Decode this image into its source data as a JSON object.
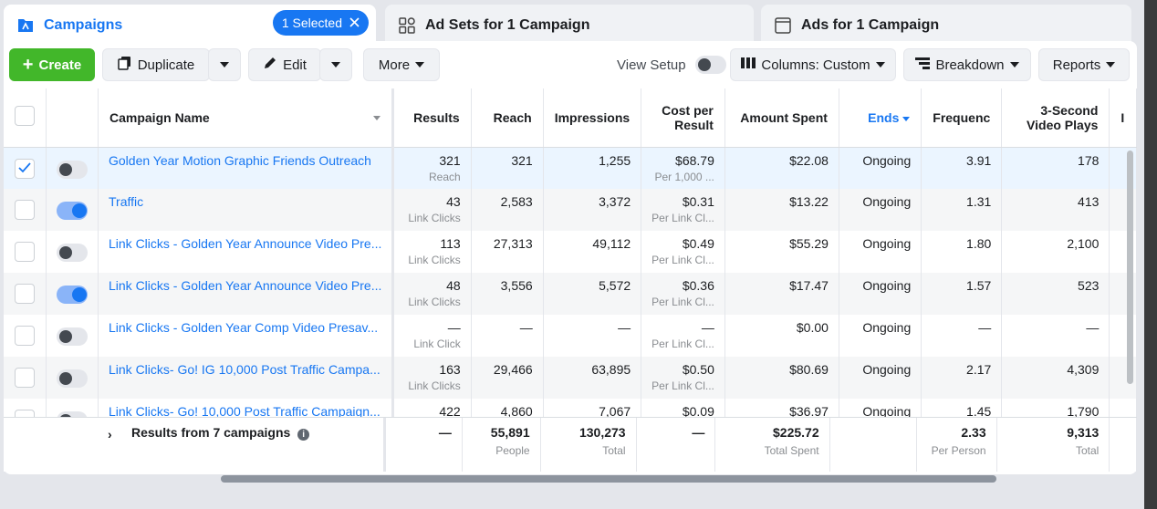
{
  "tabs": {
    "campaigns": {
      "label": "Campaigns",
      "selected_badge": "1 Selected"
    },
    "adsets": {
      "label": "Ad Sets for 1 Campaign"
    },
    "ads": {
      "label": "Ads for 1 Campaign"
    }
  },
  "toolbar": {
    "create": "Create",
    "duplicate": "Duplicate",
    "edit": "Edit",
    "more": "More",
    "view_setup": "View Setup",
    "columns": "Columns: Custom",
    "breakdown": "Breakdown",
    "reports": "Reports"
  },
  "colors": {
    "accent": "#1877f2",
    "create": "#42b72a"
  },
  "table": {
    "headers": {
      "name": "Campaign Name",
      "results": "Results",
      "reach": "Reach",
      "impressions": "Impressions",
      "cpr_1": "Cost per",
      "cpr_2": "Result",
      "spent": "Amount Spent",
      "ends": "Ends",
      "frequency": "Frequenc",
      "plays_1": "3-Second",
      "plays_2": "Video Plays"
    },
    "rows": [
      {
        "checked": true,
        "on": false,
        "name": "Golden Year Motion Graphic Friends Outreach",
        "results": "321",
        "results_sub": "Reach",
        "reach": "321",
        "impressions": "1,255",
        "cpr": "$68.79",
        "cpr_sub": "Per 1,000 ...",
        "spent": "$22.08",
        "ends": "Ongoing",
        "frequency": "3.91",
        "plays": "178"
      },
      {
        "checked": false,
        "on": true,
        "name": "Traffic",
        "results": "43",
        "results_sub": "Link Clicks",
        "reach": "2,583",
        "impressions": "3,372",
        "cpr": "$0.31",
        "cpr_sub": "Per Link Cl...",
        "spent": "$13.22",
        "ends": "Ongoing",
        "frequency": "1.31",
        "plays": "413"
      },
      {
        "checked": false,
        "on": false,
        "name": "Link Clicks - Golden Year Announce Video Pre...",
        "results": "113",
        "results_sub": "Link Clicks",
        "reach": "27,313",
        "impressions": "49,112",
        "cpr": "$0.49",
        "cpr_sub": "Per Link Cl...",
        "spent": "$55.29",
        "ends": "Ongoing",
        "frequency": "1.80",
        "plays": "2,100"
      },
      {
        "checked": false,
        "on": true,
        "name": "Link Clicks - Golden Year Announce Video Pre...",
        "results": "48",
        "results_sub": "Link Clicks",
        "reach": "3,556",
        "impressions": "5,572",
        "cpr": "$0.36",
        "cpr_sub": "Per Link Cl...",
        "spent": "$17.47",
        "ends": "Ongoing",
        "frequency": "1.57",
        "plays": "523"
      },
      {
        "checked": false,
        "on": false,
        "name": "Link Clicks - Golden Year Comp Video Presav...",
        "results": "—",
        "results_sub": "Link Click",
        "reach": "—",
        "impressions": "—",
        "cpr": "—",
        "cpr_sub": "Per Link Cl...",
        "spent": "$0.00",
        "ends": "Ongoing",
        "frequency": "—",
        "plays": "—"
      },
      {
        "checked": false,
        "on": false,
        "name": "Link Clicks- Go! IG 10,000 Post Traffic Campa...",
        "results": "163",
        "results_sub": "Link Clicks",
        "reach": "29,466",
        "impressions": "63,895",
        "cpr": "$0.50",
        "cpr_sub": "Per Link Cl...",
        "spent": "$80.69",
        "ends": "Ongoing",
        "frequency": "2.17",
        "plays": "4,309"
      },
      {
        "checked": false,
        "on": false,
        "name": "Link Clicks- Go! 10,000 Post Traffic Campaign...",
        "results": "422",
        "results_sub": "",
        "reach": "4,860",
        "impressions": "7,067",
        "cpr": "$0.09",
        "cpr_sub": "",
        "spent": "$36.97",
        "ends": "Ongoing",
        "frequency": "1.45",
        "plays": "1,790"
      }
    ],
    "footer": {
      "label": "Results from 7 campaigns",
      "results": "—",
      "reach": "55,891",
      "reach_sub": "People",
      "impressions": "130,273",
      "impressions_sub": "Total",
      "cpr": "—",
      "spent": "$225.72",
      "spent_sub": "Total Spent",
      "frequency": "2.33",
      "frequency_sub": "Per Person",
      "plays": "9,313",
      "plays_sub": "Total"
    }
  }
}
